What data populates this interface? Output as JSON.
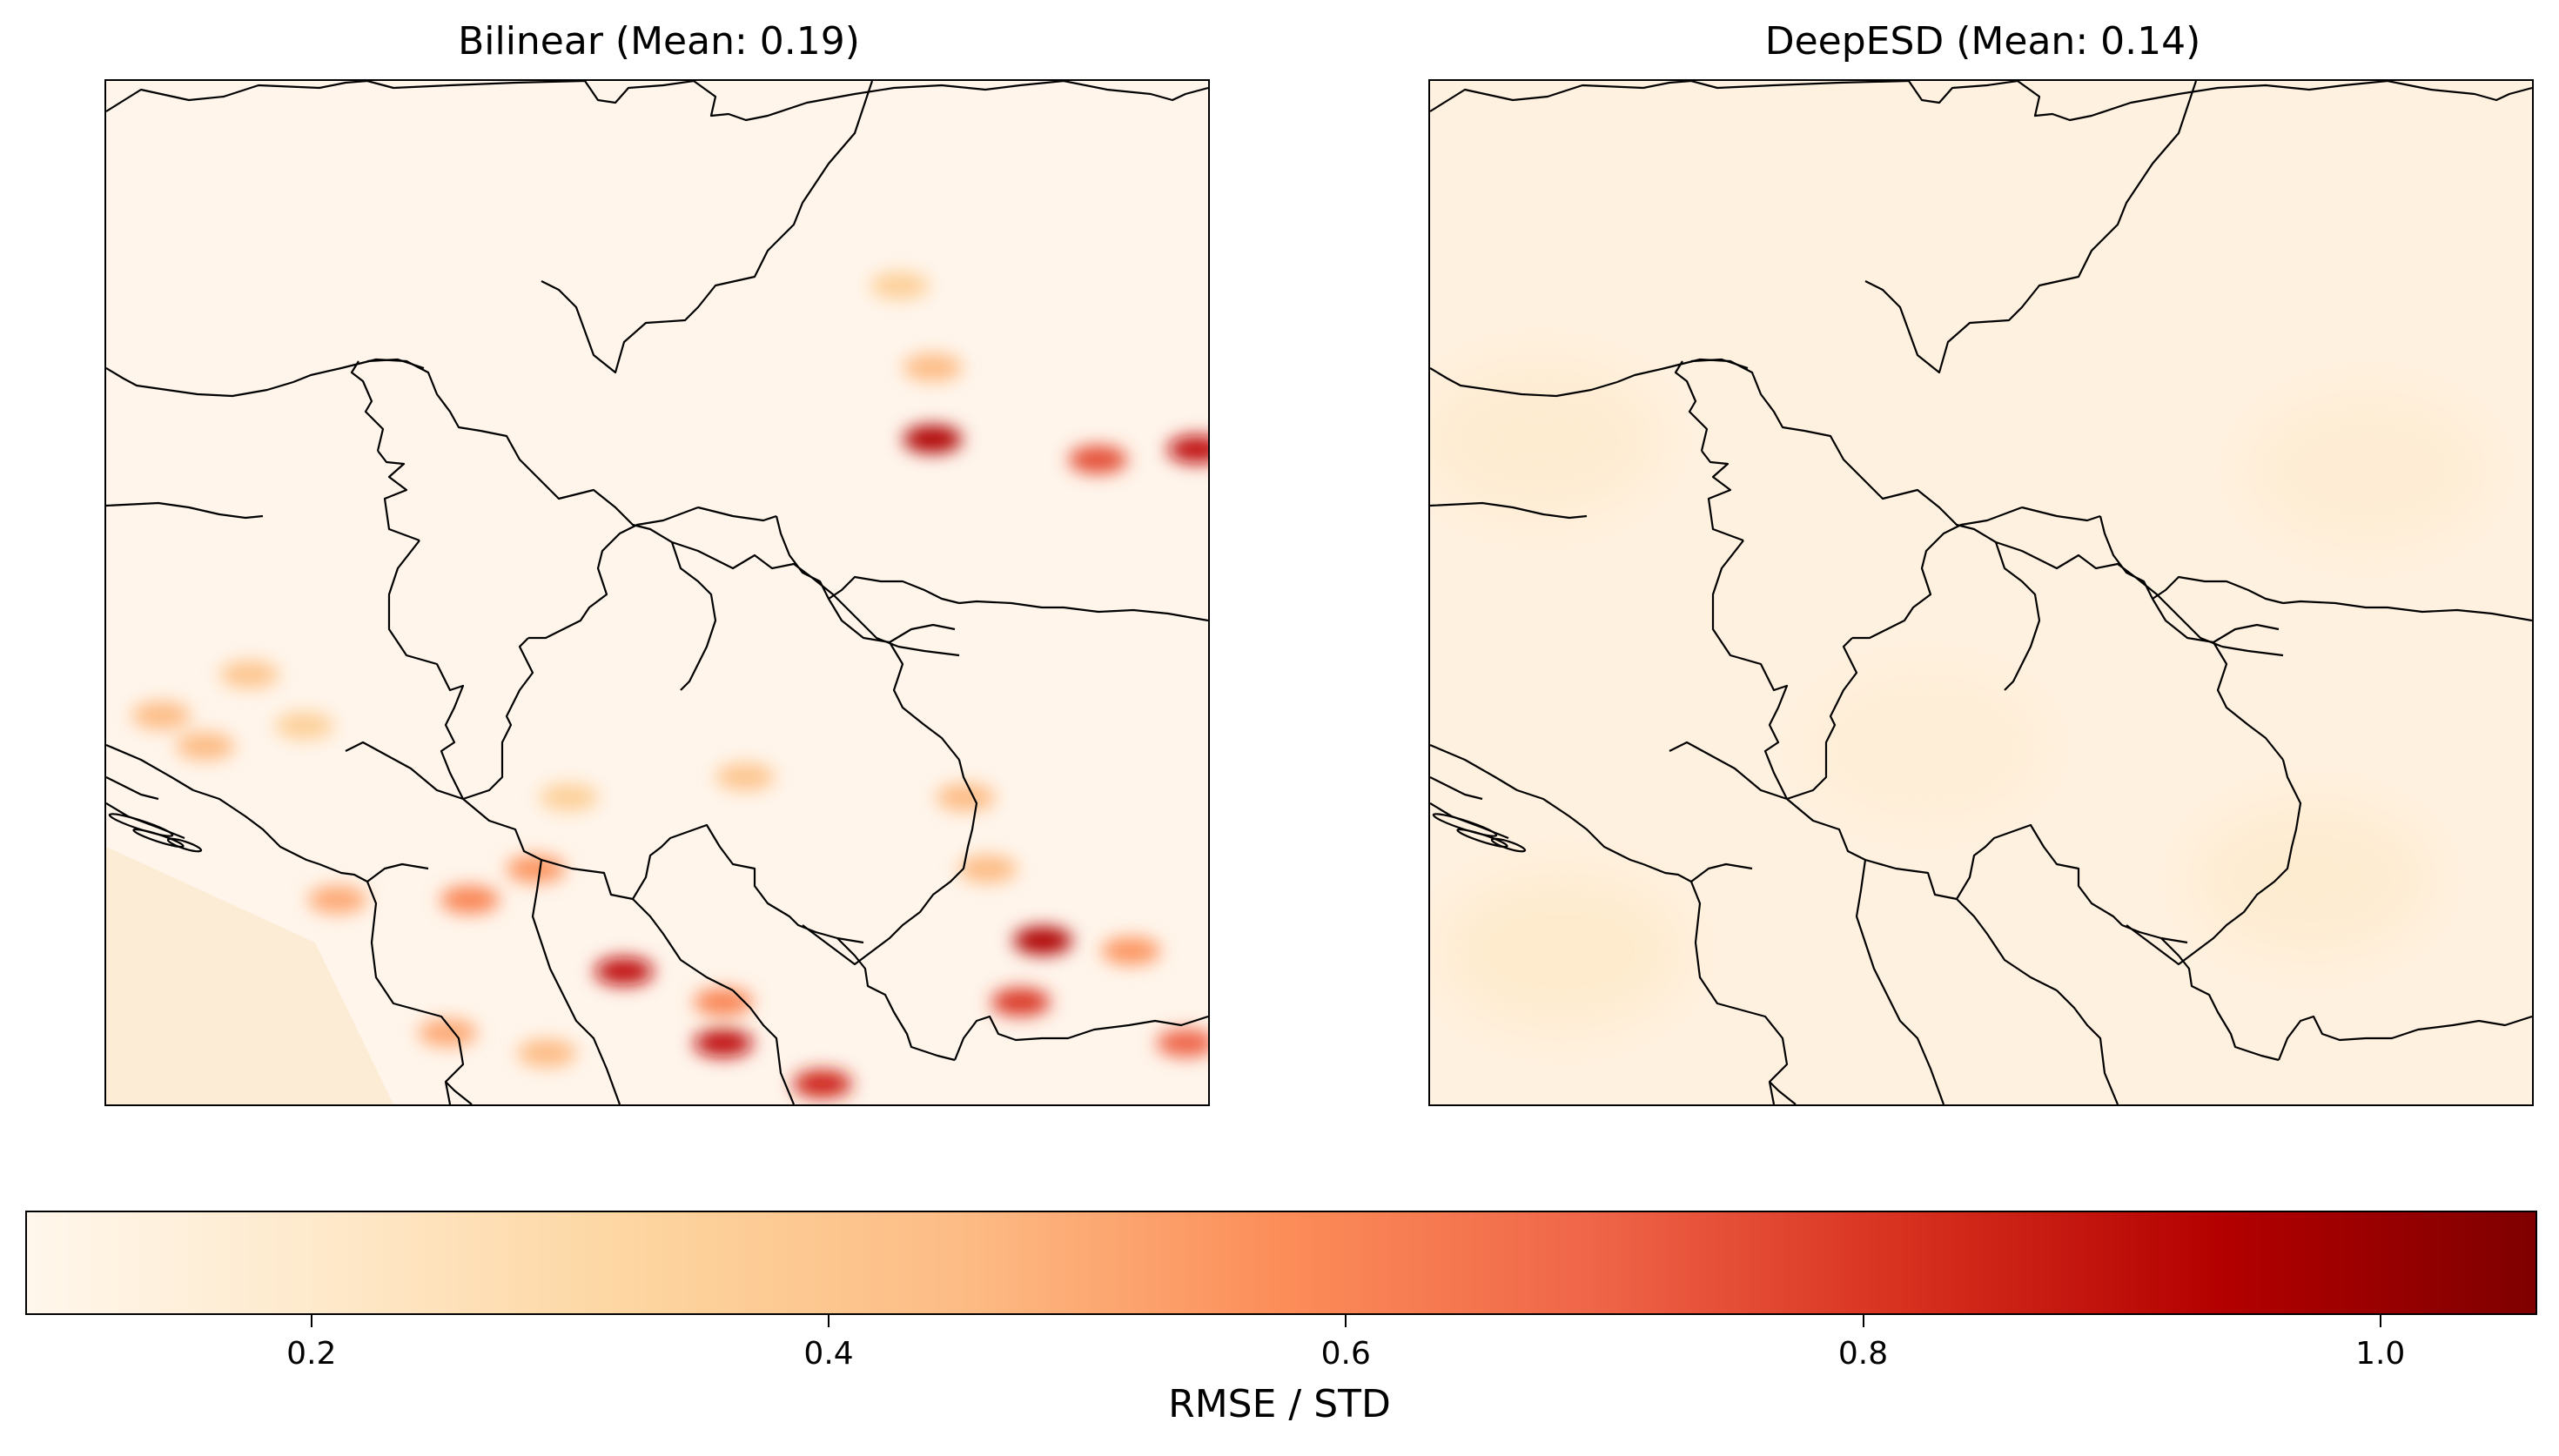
{
  "chart_data": [
    {
      "type": "heatmap",
      "title": "Bilinear (Mean: 0.19)",
      "metric": "RMSE / STD",
      "mean": 0.19,
      "description_values": {
        "background_level": 0.12,
        "peak_level": 1.0
      },
      "hotspots": [
        {
          "u": 0.75,
          "v": 0.35,
          "value": 0.95
        },
        {
          "u": 0.9,
          "v": 0.37,
          "value": 0.75
        },
        {
          "u": 0.99,
          "v": 0.36,
          "value": 0.9
        },
        {
          "u": 0.75,
          "v": 0.28,
          "value": 0.45
        },
        {
          "u": 0.72,
          "v": 0.2,
          "value": 0.35
        },
        {
          "u": 0.05,
          "v": 0.62,
          "value": 0.45
        },
        {
          "u": 0.13,
          "v": 0.58,
          "value": 0.4
        },
        {
          "u": 0.09,
          "v": 0.65,
          "value": 0.45
        },
        {
          "u": 0.18,
          "v": 0.63,
          "value": 0.35
        },
        {
          "u": 0.21,
          "v": 0.8,
          "value": 0.5
        },
        {
          "u": 0.33,
          "v": 0.8,
          "value": 0.6
        },
        {
          "u": 0.39,
          "v": 0.77,
          "value": 0.55
        },
        {
          "u": 0.47,
          "v": 0.87,
          "value": 0.9
        },
        {
          "u": 0.56,
          "v": 0.9,
          "value": 0.6
        },
        {
          "u": 0.56,
          "v": 0.94,
          "value": 0.9
        },
        {
          "u": 0.65,
          "v": 0.98,
          "value": 0.85
        },
        {
          "u": 0.85,
          "v": 0.84,
          "value": 0.95
        },
        {
          "u": 0.83,
          "v": 0.9,
          "value": 0.8
        },
        {
          "u": 0.93,
          "v": 0.85,
          "value": 0.55
        },
        {
          "u": 0.98,
          "v": 0.94,
          "value": 0.7
        },
        {
          "u": 0.78,
          "v": 0.7,
          "value": 0.45
        },
        {
          "u": 0.8,
          "v": 0.77,
          "value": 0.45
        },
        {
          "u": 0.58,
          "v": 0.68,
          "value": 0.4
        },
        {
          "u": 0.42,
          "v": 0.7,
          "value": 0.35
        },
        {
          "u": 0.31,
          "v": 0.93,
          "value": 0.5
        },
        {
          "u": 0.4,
          "v": 0.95,
          "value": 0.45
        }
      ]
    },
    {
      "type": "heatmap",
      "title": "DeepESD (Mean: 0.14)",
      "metric": "RMSE / STD",
      "mean": 0.14,
      "description_values": {
        "background_level": 0.12,
        "peak_level": 0.2
      },
      "hotspots": [
        {
          "u": 0.1,
          "v": 0.35,
          "value": 0.18
        },
        {
          "u": 0.85,
          "v": 0.38,
          "value": 0.17
        },
        {
          "u": 0.12,
          "v": 0.85,
          "value": 0.19
        },
        {
          "u": 0.8,
          "v": 0.78,
          "value": 0.18
        },
        {
          "u": 0.45,
          "v": 0.65,
          "value": 0.16
        }
      ]
    }
  ],
  "colorbar": {
    "label": "RMSE / STD",
    "min": 0.09,
    "max": 1.06,
    "ticks": [
      0.2,
      0.4,
      0.6,
      0.8,
      1.0
    ],
    "tick_labels": [
      "0.2",
      "0.4",
      "0.6",
      "0.8",
      "1.0"
    ],
    "colormap": "OrRd",
    "colors": [
      "#fff7ec",
      "#fee8c8",
      "#fdd49e",
      "#fdbb84",
      "#fc8d59",
      "#ef6548",
      "#d7301f",
      "#b30000",
      "#7f0000"
    ]
  }
}
